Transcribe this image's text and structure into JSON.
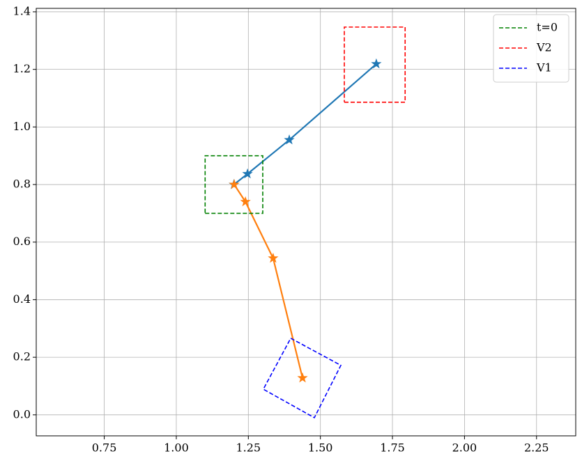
{
  "chart_data": {
    "type": "line",
    "xlim": [
      0.514,
      2.386
    ],
    "ylim": [
      -0.073,
      1.412
    ],
    "xticks": [
      0.75,
      {
        "value": 1.0,
        "label": "1.00"
      },
      1.25,
      {
        "value": 1.5,
        "label": "1.50"
      },
      1.75,
      {
        "value": 2.0,
        "label": "2.00"
      },
      2.25
    ],
    "yticks": [
      {
        "value": 0,
        "label": "0.0"
      },
      0.2,
      0.4,
      0.6,
      0.8,
      {
        "value": 1.0,
        "label": "1.0"
      },
      1.2,
      1.4
    ],
    "grid": true,
    "legend": "upper right",
    "series": [
      {
        "color": "#1f77b4",
        "marker": "star",
        "x": [
          1.2,
          1.247,
          1.392,
          1.694
        ],
        "values": [
          0.8,
          0.837,
          0.955,
          1.219
        ]
      },
      {
        "color": "#ff7f0e",
        "marker": "star",
        "x": [
          1.201,
          1.24,
          1.336,
          1.438
        ],
        "values": [
          0.8,
          0.74,
          0.544,
          0.128
        ]
      },
      {
        "name": "t=0",
        "color": "#008000",
        "linestyle": "dashed",
        "x": [
          1.1,
          1.3,
          1.3,
          1.1,
          1.1
        ],
        "values": [
          0.7,
          0.7,
          0.9,
          0.9,
          0.7
        ]
      },
      {
        "name": "V2",
        "color": "#ff0000",
        "linestyle": "dashed",
        "x": [
          1.583,
          1.794,
          1.794,
          1.583,
          1.583
        ],
        "values": [
          1.086,
          1.086,
          1.347,
          1.347,
          1.086
        ]
      },
      {
        "name": "V1",
        "color": "#0000ff",
        "linestyle": "dashed",
        "x": [
          1.397,
          1.571,
          1.479,
          1.302,
          1.397
        ],
        "values": [
          0.266,
          0.172,
          -0.01,
          0.089,
          0.266
        ]
      }
    ]
  }
}
